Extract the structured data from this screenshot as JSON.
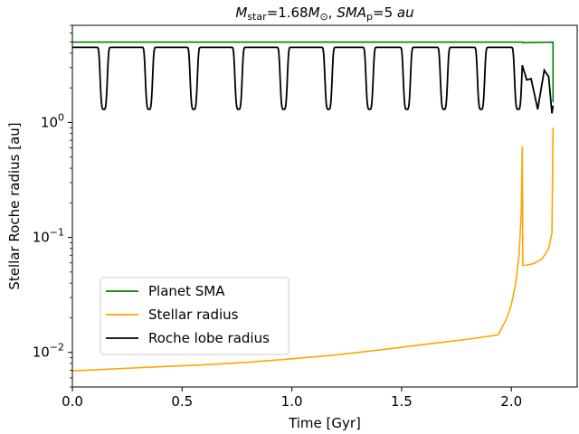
{
  "chart_data": {
    "type": "line",
    "title_parts": {
      "m_symbol": "M",
      "m_sub": "star",
      "m_value": "=1.68",
      "msun_symbol": "M",
      "msun_sub": "⊙",
      "separator": ", ",
      "sma_symbol": "SMA",
      "sma_sub": "p",
      "sma_value": "=5 ",
      "sma_unit": "au"
    },
    "xlabel": "Time [Gyr]",
    "ylabel": "Stellar Roche radius [au]",
    "xlim": [
      0.0,
      2.3
    ],
    "ylim": [
      0.005,
      7.0
    ],
    "yscale": "log",
    "x_ticks": [
      {
        "value": 0.0,
        "label": "0.0"
      },
      {
        "value": 0.5,
        "label": "0.5"
      },
      {
        "value": 1.0,
        "label": "1.0"
      },
      {
        "value": 1.5,
        "label": "1.5"
      },
      {
        "value": 2.0,
        "label": "2.0"
      }
    ],
    "y_ticks": [
      {
        "value": 0.01,
        "base": "10",
        "exp": "−2"
      },
      {
        "value": 0.1,
        "base": "10",
        "exp": "−1"
      },
      {
        "value": 1,
        "base": "10",
        "exp": "0"
      }
    ],
    "legend_position": "lower-left",
    "series": [
      {
        "name": "Planet SMA",
        "color": "#008000",
        "x": [
          0.0,
          2.05,
          2.051,
          2.19,
          2.19
        ],
        "y": [
          5.0,
          5.0,
          4.95,
          5.0,
          1.5
        ]
      },
      {
        "name": "Stellar radius",
        "color": "#ffa500",
        "x": [
          0.0,
          0.2,
          0.4,
          0.6,
          0.8,
          1.0,
          1.2,
          1.4,
          1.6,
          1.8,
          1.94,
          1.98,
          2.0,
          2.02,
          2.035,
          2.045,
          2.05,
          2.051,
          2.052,
          2.06,
          2.1,
          2.14,
          2.17,
          2.185,
          2.19
        ],
        "y": [
          0.0069,
          0.0072,
          0.0075,
          0.0078,
          0.0082,
          0.0088,
          0.0095,
          0.0105,
          0.0117,
          0.013,
          0.0142,
          0.02,
          0.026,
          0.04,
          0.07,
          0.16,
          0.62,
          0.25,
          0.057,
          0.057,
          0.059,
          0.065,
          0.08,
          0.11,
          0.9
        ]
      },
      {
        "name": "Roche lobe radius",
        "color": "#000000",
        "high": 4.5,
        "low": 1.3,
        "dips_x": [
          0.143,
          0.349,
          0.553,
          0.757,
          0.963,
          1.167,
          1.354,
          1.524,
          1.693,
          1.862,
          2.031
        ],
        "tail": {
          "x": [
            2.05,
            2.07,
            2.09,
            2.11,
            2.12,
            2.15,
            2.17,
            2.185,
            2.19
          ],
          "y": [
            1.4,
            2.35,
            2.4,
            1.6,
            1.3,
            2.85,
            2.5,
            1.2,
            1.4
          ]
        }
      }
    ]
  }
}
